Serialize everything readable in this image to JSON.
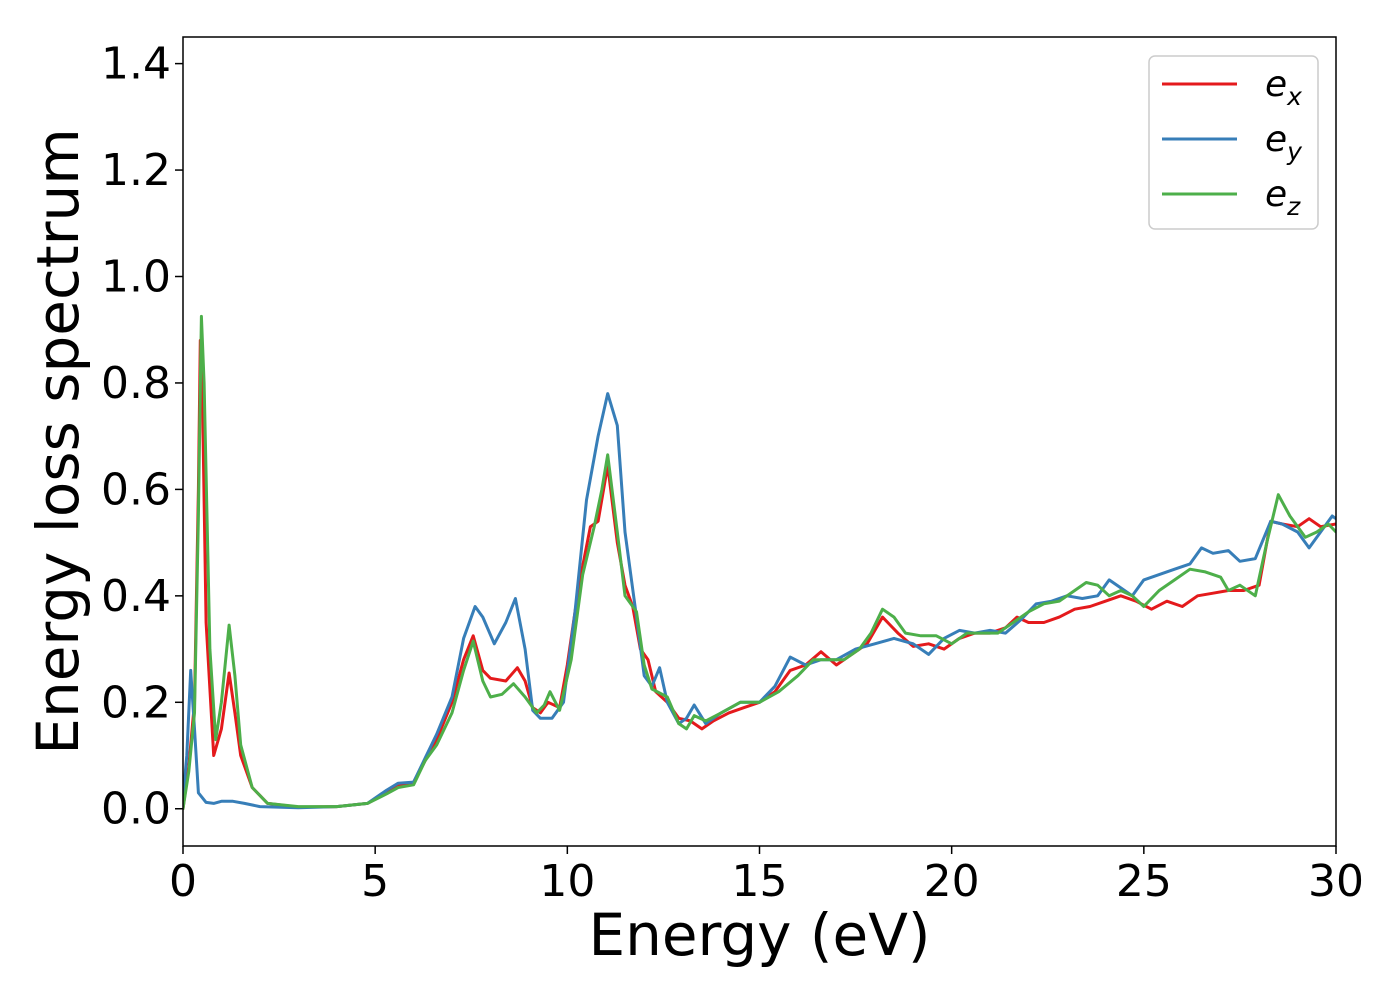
{
  "chart_data": {
    "type": "line",
    "title": "",
    "xlabel": "Energy (eV)",
    "ylabel": "Energy loss spectrum",
    "xlim": [
      0,
      30
    ],
    "ylim": [
      -0.07,
      1.45
    ],
    "xticks": [
      0,
      5,
      10,
      15,
      20,
      25,
      30
    ],
    "yticks": [
      0.0,
      0.2,
      0.4,
      0.6,
      0.8,
      1.0,
      1.2,
      1.4
    ],
    "xtick_labels": [
      "0",
      "5",
      "10",
      "15",
      "20",
      "25",
      "30"
    ],
    "ytick_labels": [
      "0.0",
      "0.2",
      "0.4",
      "0.6",
      "0.8",
      "1.0",
      "1.2",
      "1.4"
    ],
    "grid": false,
    "legend_position": "top-right",
    "series": [
      {
        "name": "e_x",
        "label_base": "e",
        "label_sub": "x",
        "color": "#e41a1c",
        "points": [
          [
            0,
            0.0
          ],
          [
            0.15,
            0.08
          ],
          [
            0.3,
            0.2
          ],
          [
            0.4,
            0.6
          ],
          [
            0.45,
            0.88
          ],
          [
            0.5,
            0.8
          ],
          [
            0.6,
            0.35
          ],
          [
            0.8,
            0.1
          ],
          [
            1.0,
            0.15
          ],
          [
            1.2,
            0.255
          ],
          [
            1.35,
            0.18
          ],
          [
            1.5,
            0.1
          ],
          [
            1.8,
            0.04
          ],
          [
            2.2,
            0.01
          ],
          [
            3.0,
            0.003
          ],
          [
            4.0,
            0.004
          ],
          [
            4.8,
            0.01
          ],
          [
            5.3,
            0.03
          ],
          [
            5.6,
            0.045
          ],
          [
            6.0,
            0.05
          ],
          [
            6.3,
            0.09
          ],
          [
            6.6,
            0.13
          ],
          [
            7.0,
            0.2
          ],
          [
            7.3,
            0.28
          ],
          [
            7.55,
            0.325
          ],
          [
            7.8,
            0.26
          ],
          [
            8.0,
            0.245
          ],
          [
            8.4,
            0.24
          ],
          [
            8.7,
            0.265
          ],
          [
            8.9,
            0.24
          ],
          [
            9.1,
            0.19
          ],
          [
            9.3,
            0.18
          ],
          [
            9.5,
            0.2
          ],
          [
            9.8,
            0.19
          ],
          [
            10.0,
            0.27
          ],
          [
            10.3,
            0.42
          ],
          [
            10.6,
            0.53
          ],
          [
            10.8,
            0.54
          ],
          [
            11.05,
            0.645
          ],
          [
            11.3,
            0.5
          ],
          [
            11.5,
            0.42
          ],
          [
            11.7,
            0.38
          ],
          [
            11.9,
            0.3
          ],
          [
            12.1,
            0.28
          ],
          [
            12.3,
            0.22
          ],
          [
            12.6,
            0.2
          ],
          [
            12.9,
            0.17
          ],
          [
            13.2,
            0.165
          ],
          [
            13.5,
            0.15
          ],
          [
            13.8,
            0.165
          ],
          [
            14.2,
            0.18
          ],
          [
            14.6,
            0.19
          ],
          [
            15.0,
            0.2
          ],
          [
            15.4,
            0.22
          ],
          [
            15.8,
            0.26
          ],
          [
            16.2,
            0.27
          ],
          [
            16.6,
            0.295
          ],
          [
            17.0,
            0.27
          ],
          [
            17.4,
            0.29
          ],
          [
            17.8,
            0.31
          ],
          [
            18.2,
            0.36
          ],
          [
            18.6,
            0.33
          ],
          [
            19.0,
            0.305
          ],
          [
            19.4,
            0.31
          ],
          [
            19.8,
            0.3
          ],
          [
            20.2,
            0.32
          ],
          [
            20.6,
            0.33
          ],
          [
            21.0,
            0.33
          ],
          [
            21.4,
            0.34
          ],
          [
            21.7,
            0.36
          ],
          [
            22.0,
            0.35
          ],
          [
            22.4,
            0.35
          ],
          [
            22.8,
            0.36
          ],
          [
            23.2,
            0.375
          ],
          [
            23.6,
            0.38
          ],
          [
            24.0,
            0.39
          ],
          [
            24.4,
            0.4
          ],
          [
            24.8,
            0.39
          ],
          [
            25.2,
            0.375
          ],
          [
            25.6,
            0.39
          ],
          [
            26.0,
            0.38
          ],
          [
            26.4,
            0.4
          ],
          [
            26.8,
            0.405
          ],
          [
            27.2,
            0.41
          ],
          [
            27.6,
            0.41
          ],
          [
            28.0,
            0.42
          ],
          [
            28.3,
            0.54
          ],
          [
            28.6,
            0.535
          ],
          [
            29.0,
            0.53
          ],
          [
            29.3,
            0.545
          ],
          [
            29.6,
            0.53
          ],
          [
            30.0,
            0.535
          ]
        ]
      },
      {
        "name": "e_y",
        "label_base": "e",
        "label_sub": "y",
        "color": "#377eb8",
        "points": [
          [
            0,
            0.02
          ],
          [
            0.1,
            0.1
          ],
          [
            0.2,
            0.26
          ],
          [
            0.3,
            0.15
          ],
          [
            0.4,
            0.03
          ],
          [
            0.6,
            0.012
          ],
          [
            0.8,
            0.01
          ],
          [
            1.0,
            0.014
          ],
          [
            1.3,
            0.014
          ],
          [
            1.6,
            0.01
          ],
          [
            2.0,
            0.004
          ],
          [
            3.0,
            0.002
          ],
          [
            4.0,
            0.004
          ],
          [
            4.8,
            0.01
          ],
          [
            5.3,
            0.035
          ],
          [
            5.6,
            0.048
          ],
          [
            6.0,
            0.05
          ],
          [
            6.3,
            0.095
          ],
          [
            6.6,
            0.14
          ],
          [
            7.0,
            0.21
          ],
          [
            7.3,
            0.32
          ],
          [
            7.6,
            0.38
          ],
          [
            7.8,
            0.36
          ],
          [
            8.1,
            0.31
          ],
          [
            8.4,
            0.35
          ],
          [
            8.65,
            0.395
          ],
          [
            8.9,
            0.3
          ],
          [
            9.1,
            0.185
          ],
          [
            9.3,
            0.17
          ],
          [
            9.6,
            0.17
          ],
          [
            9.9,
            0.2
          ],
          [
            10.2,
            0.37
          ],
          [
            10.5,
            0.58
          ],
          [
            10.8,
            0.7
          ],
          [
            11.05,
            0.78
          ],
          [
            11.3,
            0.72
          ],
          [
            11.5,
            0.52
          ],
          [
            11.8,
            0.36
          ],
          [
            12.0,
            0.25
          ],
          [
            12.2,
            0.23
          ],
          [
            12.4,
            0.265
          ],
          [
            12.6,
            0.2
          ],
          [
            12.9,
            0.16
          ],
          [
            13.1,
            0.17
          ],
          [
            13.3,
            0.195
          ],
          [
            13.6,
            0.16
          ],
          [
            14.0,
            0.18
          ],
          [
            14.5,
            0.2
          ],
          [
            15.0,
            0.2
          ],
          [
            15.4,
            0.23
          ],
          [
            15.8,
            0.285
          ],
          [
            16.2,
            0.27
          ],
          [
            16.6,
            0.28
          ],
          [
            17.0,
            0.28
          ],
          [
            17.5,
            0.3
          ],
          [
            18.0,
            0.31
          ],
          [
            18.5,
            0.32
          ],
          [
            19.0,
            0.31
          ],
          [
            19.4,
            0.29
          ],
          [
            19.8,
            0.32
          ],
          [
            20.2,
            0.335
          ],
          [
            20.6,
            0.33
          ],
          [
            21.0,
            0.335
          ],
          [
            21.4,
            0.33
          ],
          [
            21.8,
            0.355
          ],
          [
            22.2,
            0.385
          ],
          [
            22.6,
            0.39
          ],
          [
            23.0,
            0.4
          ],
          [
            23.4,
            0.395
          ],
          [
            23.8,
            0.4
          ],
          [
            24.1,
            0.43
          ],
          [
            24.4,
            0.415
          ],
          [
            24.7,
            0.4
          ],
          [
            25.0,
            0.43
          ],
          [
            25.4,
            0.44
          ],
          [
            25.8,
            0.45
          ],
          [
            26.2,
            0.46
          ],
          [
            26.5,
            0.49
          ],
          [
            26.8,
            0.48
          ],
          [
            27.2,
            0.485
          ],
          [
            27.5,
            0.465
          ],
          [
            27.9,
            0.47
          ],
          [
            28.3,
            0.54
          ],
          [
            28.6,
            0.535
          ],
          [
            29.0,
            0.52
          ],
          [
            29.3,
            0.49
          ],
          [
            29.6,
            0.52
          ],
          [
            29.9,
            0.55
          ],
          [
            30.0,
            0.545
          ]
        ]
      },
      {
        "name": "e_z",
        "label_base": "e",
        "label_sub": "z",
        "color": "#4daf4a",
        "points": [
          [
            0,
            0.0
          ],
          [
            0.15,
            0.07
          ],
          [
            0.3,
            0.18
          ],
          [
            0.4,
            0.55
          ],
          [
            0.48,
            0.925
          ],
          [
            0.55,
            0.8
          ],
          [
            0.7,
            0.3
          ],
          [
            0.85,
            0.13
          ],
          [
            1.0,
            0.2
          ],
          [
            1.2,
            0.345
          ],
          [
            1.35,
            0.25
          ],
          [
            1.5,
            0.12
          ],
          [
            1.8,
            0.04
          ],
          [
            2.2,
            0.01
          ],
          [
            3.0,
            0.004
          ],
          [
            4.0,
            0.004
          ],
          [
            4.8,
            0.01
          ],
          [
            5.3,
            0.028
          ],
          [
            5.6,
            0.04
          ],
          [
            6.0,
            0.045
          ],
          [
            6.3,
            0.09
          ],
          [
            6.6,
            0.12
          ],
          [
            7.0,
            0.18
          ],
          [
            7.3,
            0.26
          ],
          [
            7.55,
            0.315
          ],
          [
            7.8,
            0.24
          ],
          [
            8.0,
            0.21
          ],
          [
            8.3,
            0.215
          ],
          [
            8.6,
            0.235
          ],
          [
            8.9,
            0.21
          ],
          [
            9.2,
            0.18
          ],
          [
            9.4,
            0.195
          ],
          [
            9.55,
            0.22
          ],
          [
            9.8,
            0.185
          ],
          [
            10.1,
            0.28
          ],
          [
            10.4,
            0.44
          ],
          [
            10.7,
            0.53
          ],
          [
            10.9,
            0.6
          ],
          [
            11.05,
            0.665
          ],
          [
            11.3,
            0.52
          ],
          [
            11.5,
            0.4
          ],
          [
            11.8,
            0.37
          ],
          [
            12.0,
            0.27
          ],
          [
            12.2,
            0.225
          ],
          [
            12.6,
            0.21
          ],
          [
            12.9,
            0.16
          ],
          [
            13.1,
            0.15
          ],
          [
            13.3,
            0.175
          ],
          [
            13.6,
            0.165
          ],
          [
            14.0,
            0.18
          ],
          [
            14.5,
            0.2
          ],
          [
            15.0,
            0.2
          ],
          [
            15.5,
            0.22
          ],
          [
            16.0,
            0.25
          ],
          [
            16.4,
            0.28
          ],
          [
            16.8,
            0.28
          ],
          [
            17.2,
            0.28
          ],
          [
            17.6,
            0.3
          ],
          [
            17.9,
            0.33
          ],
          [
            18.2,
            0.375
          ],
          [
            18.5,
            0.36
          ],
          [
            18.8,
            0.33
          ],
          [
            19.2,
            0.325
          ],
          [
            19.6,
            0.325
          ],
          [
            20.0,
            0.31
          ],
          [
            20.4,
            0.33
          ],
          [
            20.8,
            0.33
          ],
          [
            21.2,
            0.33
          ],
          [
            21.6,
            0.35
          ],
          [
            22.0,
            0.37
          ],
          [
            22.4,
            0.385
          ],
          [
            22.8,
            0.39
          ],
          [
            23.2,
            0.41
          ],
          [
            23.5,
            0.425
          ],
          [
            23.8,
            0.42
          ],
          [
            24.1,
            0.4
          ],
          [
            24.4,
            0.41
          ],
          [
            24.7,
            0.4
          ],
          [
            25.0,
            0.38
          ],
          [
            25.4,
            0.41
          ],
          [
            25.8,
            0.43
          ],
          [
            26.2,
            0.45
          ],
          [
            26.6,
            0.445
          ],
          [
            27.0,
            0.435
          ],
          [
            27.2,
            0.41
          ],
          [
            27.5,
            0.42
          ],
          [
            27.9,
            0.4
          ],
          [
            28.2,
            0.5
          ],
          [
            28.5,
            0.59
          ],
          [
            28.8,
            0.55
          ],
          [
            29.2,
            0.51
          ],
          [
            29.5,
            0.52
          ],
          [
            29.8,
            0.535
          ],
          [
            30.0,
            0.52
          ]
        ]
      }
    ]
  }
}
